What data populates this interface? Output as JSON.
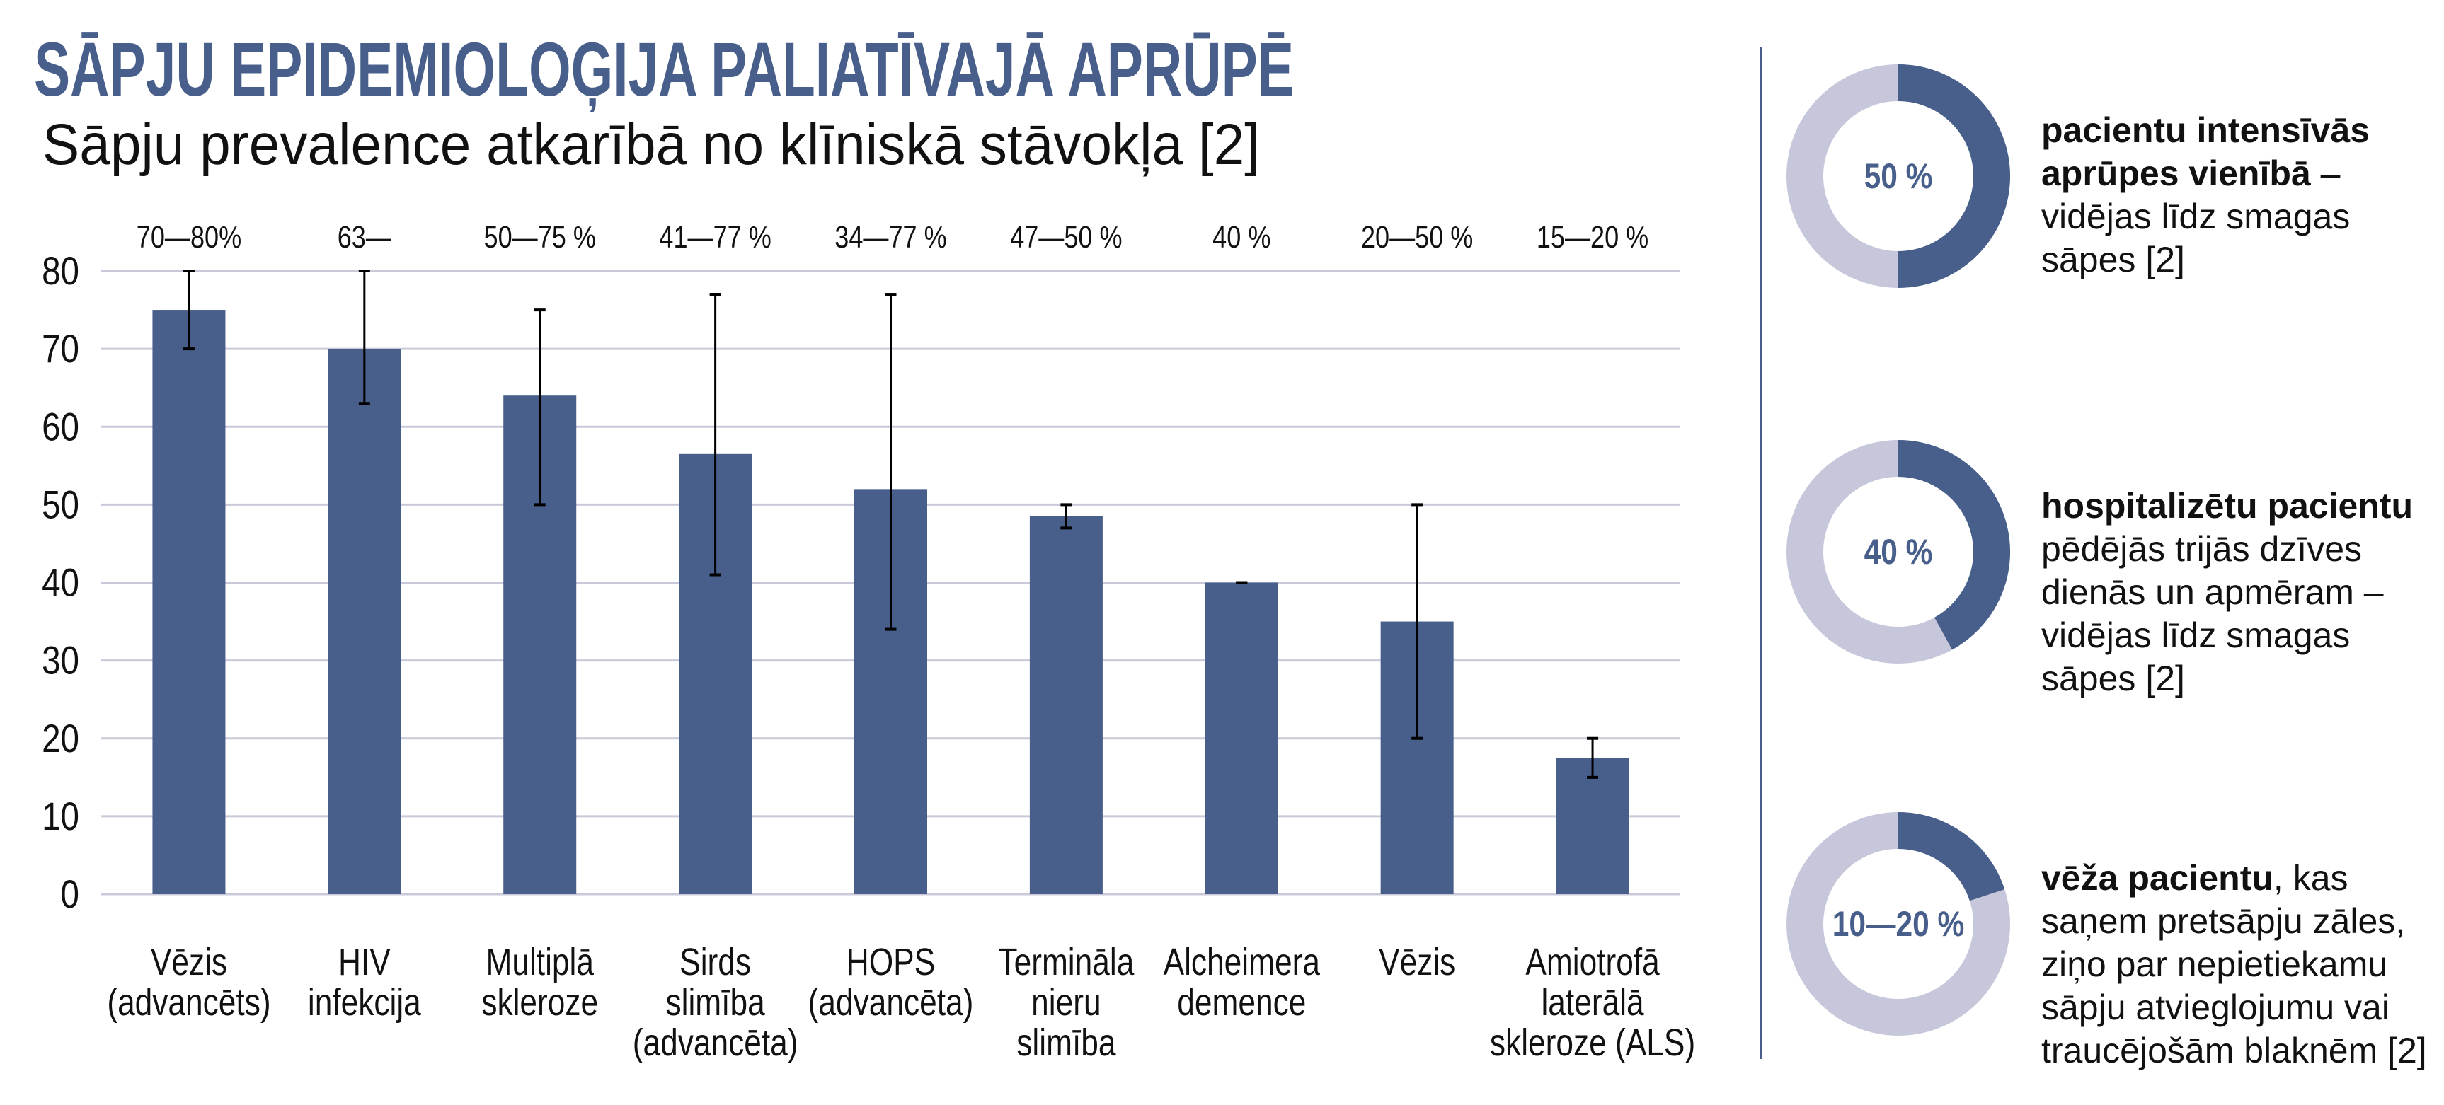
{
  "header": {
    "title": "SĀPJU EPIDEMIOLOĢIJA PALIATĪVAJĀ APRŪPĒ",
    "subtitle": "Sāpju prevalence atkarībā no klīniskā stāvokļa [2]"
  },
  "colors": {
    "bar": "#475f8a",
    "donut_light": "#c7c7db",
    "grid": "#c9c9d9",
    "title": "#475f8a",
    "divider": "#475f8a"
  },
  "chart_data": {
    "type": "bar",
    "title": "",
    "xlabel": "",
    "ylabel": "",
    "ylim": [
      0,
      80
    ],
    "yticks": [
      0,
      10,
      20,
      30,
      40,
      50,
      60,
      70,
      80
    ],
    "grid": true,
    "categories": [
      [
        "Vēzis",
        "(advancēts)"
      ],
      [
        "HIV",
        "infekcija"
      ],
      [
        "Multiplā",
        "skleroze"
      ],
      [
        "Sirds",
        "slimība",
        "(advancēta)"
      ],
      [
        "HOPS",
        "(advancēta)"
      ],
      [
        "Termināla",
        "nieru",
        "slimība"
      ],
      [
        "Alcheimera",
        "demence"
      ],
      [
        "Vēzis"
      ],
      [
        "Amiotrofā",
        "laterālā",
        "skleroze (ALS)"
      ]
    ],
    "values": [
      75,
      70,
      64,
      56.5,
      52,
      48.5,
      40,
      35,
      17.5
    ],
    "error_ranges": [
      [
        70,
        80
      ],
      [
        63,
        80
      ],
      [
        50,
        75
      ],
      [
        41,
        77
      ],
      [
        34,
        77
      ],
      [
        47,
        50
      ],
      [
        40,
        40
      ],
      [
        20,
        50
      ],
      [
        15,
        20
      ]
    ],
    "top_labels": [
      "70—80%",
      "63—",
      "50—75 %",
      "41—77 %",
      "34—77 %",
      "47—50 %",
      "40 %",
      "20—50 %",
      "15—20 %"
    ]
  },
  "side_stats": [
    {
      "label": "50 %",
      "fraction": 0.5,
      "bold": "pacientu intensīvās aprūpes vienībā",
      "rest": " – vidējas līdz smagas sāpes [2]"
    },
    {
      "label": "40 %",
      "fraction": 0.42,
      "bold": "hospitalizētu pacientu",
      "rest": " pēdējās trijās dzīves dienās un apmēram – vidējas līdz smagas sāpes [2]"
    },
    {
      "label": "10—20 %",
      "fraction": 0.2,
      "bold": "vēža pacientu",
      "rest": ", kas saņem pretsāpju zāles, ziņo par nepietiekamu sāpju atvieglojumu vai traucējošām blaknēm [2]"
    }
  ]
}
